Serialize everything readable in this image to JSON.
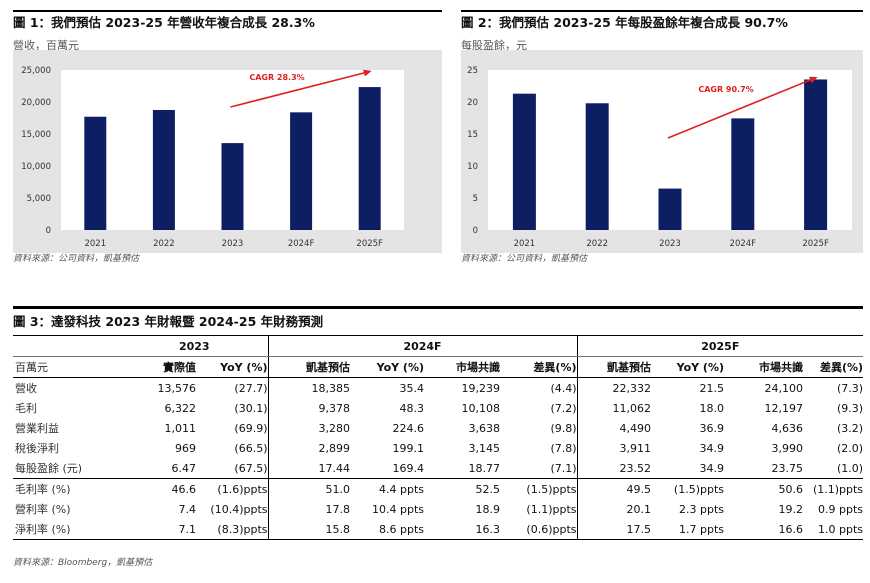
{
  "figures": [
    {
      "title": "圖 1：我們預估 2023-25 年營收年複合成長 28.3%",
      "unit": "營收，百萬元",
      "source": "資料來源：公司資料，凱基預估",
      "annotation": "CAGR 28.3%",
      "arrow_from_category": "2023",
      "arrow_to_category": "2025F"
    },
    {
      "title": "圖 2：我們預估 2023-25 年每股盈餘年複合成長 90.7%",
      "unit": "每股盈餘，元",
      "source": "資料來源：公司資料，凱基預估",
      "annotation": "CAGR 90.7%",
      "arrow_from_category": "2023",
      "arrow_to_category": "2025F"
    }
  ],
  "chart_data": [
    {
      "type": "bar",
      "title": "圖 1：我們預估 2023-25 年營收年複合成長 28.3%",
      "ylabel": "營收，百萬元",
      "xlabel": "",
      "categories": [
        "2021",
        "2022",
        "2023",
        "2024F",
        "2025F"
      ],
      "values": [
        17700,
        18750,
        13576,
        18385,
        22332
      ],
      "ylim": [
        0,
        25000
      ],
      "yticks": [
        0,
        5000,
        10000,
        15000,
        20000,
        25000
      ],
      "ytick_labels": [
        "0",
        "5,000",
        "10,000",
        "15,000",
        "20,000",
        "25,000"
      ],
      "grid": false,
      "bar_color": "#0d1e63",
      "background": "#e4e4e4",
      "annotation_color": "#e02020"
    },
    {
      "type": "bar",
      "title": "圖 2：我們預估 2023-25 年每股盈餘年複合成長 90.7%",
      "ylabel": "每股盈餘，元",
      "xlabel": "",
      "categories": [
        "2021",
        "2022",
        "2023",
        "2024F",
        "2025F"
      ],
      "values": [
        21.3,
        19.8,
        6.47,
        17.44,
        23.52
      ],
      "ylim": [
        0,
        25
      ],
      "yticks": [
        0,
        5,
        10,
        15,
        20,
        25
      ],
      "ytick_labels": [
        "0",
        "5",
        "10",
        "15",
        "20",
        "25"
      ],
      "grid": false,
      "bar_color": "#0d1e63",
      "background": "#e4e4e4",
      "annotation_color": "#e02020"
    }
  ],
  "table": {
    "title": "圖 3：達發科技 2023 年財報暨 2024-25 年財務預測",
    "year_headers": [
      "2023",
      "2024F",
      "2025F"
    ],
    "unit": "百萬元",
    "columns": [
      "實際值",
      "YoY (%)",
      "凱基預估",
      "YoY (%)",
      "市場共識",
      "差異(%)",
      "凱基預估",
      "YoY (%)",
      "市場共識",
      "差異(%)"
    ],
    "rows": [
      {
        "label": "營收",
        "cells": [
          "13,576",
          "(27.7)",
          "18,385",
          "35.4",
          "19,239",
          "(4.4)",
          "22,332",
          "21.5",
          "24,100",
          "(7.3)"
        ]
      },
      {
        "label": "毛利",
        "cells": [
          "6,322",
          "(30.1)",
          "9,378",
          "48.3",
          "10,108",
          "(7.2)",
          "11,062",
          "18.0",
          "12,197",
          "(9.3)"
        ]
      },
      {
        "label": "營業利益",
        "cells": [
          "1,011",
          "(69.9)",
          "3,280",
          "224.6",
          "3,638",
          "(9.8)",
          "4,490",
          "36.9",
          "4,636",
          "(3.2)"
        ]
      },
      {
        "label": "稅後淨利",
        "cells": [
          "969",
          "(66.5)",
          "2,899",
          "199.1",
          "3,145",
          "(7.8)",
          "3,911",
          "34.9",
          "3,990",
          "(2.0)"
        ]
      },
      {
        "label": "每股盈餘 (元)",
        "cells": [
          "6.47",
          "(67.5)",
          "17.44",
          "169.4",
          "18.77",
          "(7.1)",
          "23.52",
          "34.9",
          "23.75",
          "(1.0)"
        ]
      },
      {
        "label": "毛利率 (%)",
        "cells": [
          "46.6",
          "(1.6)ppts",
          "51.0",
          "4.4 ppts",
          "52.5",
          "(1.5)ppts",
          "49.5",
          "(1.5)ppts",
          "50.6",
          "(1.1)ppts"
        ]
      },
      {
        "label": "營利率 (%)",
        "cells": [
          "7.4",
          "(10.4)ppts",
          "17.8",
          "10.4 ppts",
          "18.9",
          "(1.1)ppts",
          "20.1",
          "2.3 ppts",
          "19.2",
          "0.9 ppts"
        ]
      },
      {
        "label": "淨利率 (%)",
        "cells": [
          "7.1",
          "(8.3)ppts",
          "15.8",
          "8.6 ppts",
          "16.3",
          "(0.6)ppts",
          "17.5",
          "1.7 ppts",
          "16.6",
          "1.0 ppts"
        ]
      }
    ],
    "source": "資料來源：Bloomberg，凱基預估"
  }
}
